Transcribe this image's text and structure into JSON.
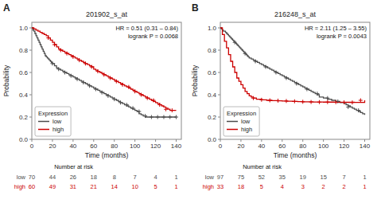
{
  "chart_data": [
    {
      "type": "step",
      "panel_label": "A",
      "title": "201902_s_at",
      "x_label": "Time (months)",
      "y_label": "Probability",
      "annotations": [
        "HR = 0.51 (0.31 – 0.84)",
        "logrank P = 0.0068"
      ],
      "xlim": [
        0,
        145
      ],
      "ylim": [
        0,
        1.05
      ],
      "xticks": [
        0,
        20,
        40,
        60,
        80,
        100,
        120,
        140
      ],
      "yticks": [
        {
          "value": 0,
          "label": "0.0"
        },
        0.2,
        0.4,
        0.6,
        0.8,
        {
          "value": 1,
          "label": "1.0"
        }
      ],
      "grid": false,
      "legend": "lower left",
      "legend_title": "Expression",
      "series": [
        {
          "name": "low",
          "color": "#4d4d4d",
          "x": [
            0,
            1,
            2,
            3,
            4,
            5,
            6,
            7,
            8,
            9,
            10,
            11,
            12,
            13,
            14,
            15,
            16,
            17,
            18,
            19,
            20,
            22,
            24,
            26,
            28,
            30,
            32,
            34,
            36,
            38,
            40,
            42,
            44,
            46,
            48,
            50,
            52,
            54,
            56,
            58,
            60,
            62,
            64,
            66,
            68,
            70,
            72,
            74,
            76,
            78,
            80,
            82,
            84,
            86,
            88,
            90,
            92,
            94,
            96,
            98,
            100,
            102,
            104,
            106,
            108,
            110,
            112,
            114,
            116,
            118,
            120,
            122,
            124,
            126,
            128,
            130,
            132,
            134,
            136,
            138,
            140
          ],
          "values": [
            1.0,
            0.98,
            0.97,
            0.95,
            0.93,
            0.91,
            0.89,
            0.87,
            0.85,
            0.83,
            0.81,
            0.79,
            0.77,
            0.75,
            0.74,
            0.73,
            0.72,
            0.71,
            0.7,
            0.69,
            0.68,
            0.66,
            0.64,
            0.63,
            0.62,
            0.61,
            0.6,
            0.59,
            0.58,
            0.57,
            0.56,
            0.55,
            0.54,
            0.53,
            0.52,
            0.51,
            0.5,
            0.49,
            0.48,
            0.47,
            0.46,
            0.45,
            0.44,
            0.43,
            0.42,
            0.41,
            0.4,
            0.39,
            0.38,
            0.37,
            0.36,
            0.35,
            0.34,
            0.33,
            0.32,
            0.31,
            0.3,
            0.29,
            0.28,
            0.27,
            0.26,
            0.25,
            0.23,
            0.22,
            0.21,
            0.2,
            0.2,
            0.2,
            0.2,
            0.2,
            0.2,
            0.2,
            0.2,
            0.2,
            0.2,
            0.2,
            0.2,
            0.2,
            0.2,
            0.2,
            0.2
          ]
        },
        {
          "name": "high",
          "color": "#cc0000",
          "x": [
            0,
            2,
            4,
            6,
            8,
            10,
            12,
            14,
            16,
            18,
            20,
            22,
            24,
            26,
            28,
            30,
            32,
            34,
            36,
            38,
            40,
            42,
            44,
            46,
            48,
            50,
            52,
            54,
            56,
            58,
            60,
            62,
            64,
            66,
            68,
            70,
            72,
            74,
            76,
            78,
            80,
            82,
            84,
            86,
            88,
            90,
            92,
            94,
            96,
            98,
            100,
            102,
            104,
            106,
            108,
            110,
            112,
            114,
            116,
            118,
            120,
            122,
            124,
            126,
            128,
            130,
            132,
            134,
            136,
            138,
            140
          ],
          "values": [
            1.0,
            0.99,
            0.98,
            0.97,
            0.96,
            0.95,
            0.94,
            0.93,
            0.91,
            0.89,
            0.87,
            0.85,
            0.83,
            0.81,
            0.8,
            0.79,
            0.78,
            0.77,
            0.76,
            0.75,
            0.74,
            0.73,
            0.72,
            0.71,
            0.7,
            0.69,
            0.68,
            0.67,
            0.66,
            0.65,
            0.63,
            0.62,
            0.61,
            0.6,
            0.59,
            0.58,
            0.57,
            0.56,
            0.55,
            0.54,
            0.53,
            0.52,
            0.51,
            0.5,
            0.49,
            0.48,
            0.47,
            0.46,
            0.45,
            0.44,
            0.43,
            0.42,
            0.41,
            0.4,
            0.39,
            0.38,
            0.37,
            0.36,
            0.35,
            0.34,
            0.33,
            0.32,
            0.31,
            0.3,
            0.29,
            0.28,
            0.27,
            0.26,
            0.26,
            0.26,
            0.26
          ]
        },
        {
          "type": "scatter",
          "marker": "plus",
          "color": "#4d4d4d",
          "x": [
            20,
            26,
            32,
            38,
            44,
            50,
            56,
            62,
            68,
            74,
            80,
            86,
            92,
            98,
            104,
            110,
            116,
            122,
            128,
            134,
            140
          ],
          "values": [
            0.68,
            0.63,
            0.6,
            0.57,
            0.54,
            0.51,
            0.48,
            0.45,
            0.42,
            0.39,
            0.36,
            0.33,
            0.31,
            0.28,
            0.25,
            0.21,
            0.2,
            0.2,
            0.2,
            0.2,
            0.2
          ]
        },
        {
          "type": "scatter",
          "marker": "plus",
          "color": "#cc0000",
          "x": [
            16,
            22,
            28,
            34,
            40,
            46,
            52,
            58,
            64,
            70,
            76,
            82,
            88,
            94,
            100,
            106,
            112,
            118,
            124,
            130,
            136
          ],
          "values": [
            0.91,
            0.85,
            0.8,
            0.77,
            0.74,
            0.71,
            0.68,
            0.65,
            0.61,
            0.58,
            0.55,
            0.52,
            0.49,
            0.47,
            0.43,
            0.4,
            0.37,
            0.35,
            0.31,
            0.27,
            0.26
          ]
        }
      ],
      "risk_table": {
        "title": "Number at risk",
        "x": [
          0,
          20,
          40,
          60,
          80,
          100,
          120,
          140
        ],
        "rows": [
          {
            "name": "low",
            "color": "#4d4d4d",
            "values": [
              70,
              44,
              26,
              18,
              8,
              7,
              4,
              1
            ]
          },
          {
            "name": "high",
            "color": "#cc0000",
            "values": [
              60,
              49,
              31,
              21,
              14,
              10,
              5,
              1
            ]
          }
        ]
      }
    },
    {
      "type": "step",
      "panel_label": "B",
      "title": "216248_s_at",
      "x_label": "Time (months)",
      "y_label": "Probability",
      "annotations": [
        "HR = 2.11 (1.25 – 3.55)",
        "logrank P = 0.0043"
      ],
      "xlim": [
        0,
        145
      ],
      "ylim": [
        0,
        1.05
      ],
      "xticks": [
        0,
        20,
        40,
        60,
        80,
        100,
        120,
        140
      ],
      "yticks": [
        {
          "value": 0,
          "label": "0.0"
        },
        0.2,
        0.4,
        0.6,
        0.8,
        {
          "value": 1,
          "label": "1.0"
        }
      ],
      "grid": false,
      "legend": "lower left",
      "legend_title": "Expression",
      "series": [
        {
          "name": "low",
          "color": "#4d4d4d",
          "x": [
            0,
            1,
            2,
            3,
            4,
            5,
            6,
            7,
            8,
            9,
            10,
            11,
            12,
            13,
            14,
            15,
            16,
            17,
            18,
            19,
            20,
            21,
            22,
            23,
            24,
            25,
            26,
            27,
            28,
            30,
            32,
            34,
            36,
            38,
            40,
            42,
            44,
            46,
            48,
            50,
            52,
            54,
            56,
            58,
            60,
            62,
            64,
            66,
            68,
            70,
            72,
            74,
            76,
            78,
            80,
            82,
            84,
            86,
            88,
            90,
            92,
            94,
            96,
            100,
            104,
            108,
            112,
            116,
            120,
            122,
            124,
            126,
            128,
            130,
            132,
            134,
            136,
            138,
            140
          ],
          "values": [
            1.0,
            0.99,
            0.98,
            0.97,
            0.97,
            0.96,
            0.95,
            0.94,
            0.93,
            0.92,
            0.91,
            0.9,
            0.89,
            0.88,
            0.87,
            0.86,
            0.85,
            0.84,
            0.83,
            0.82,
            0.81,
            0.8,
            0.79,
            0.78,
            0.77,
            0.76,
            0.75,
            0.74,
            0.73,
            0.72,
            0.71,
            0.7,
            0.69,
            0.68,
            0.67,
            0.66,
            0.65,
            0.64,
            0.63,
            0.62,
            0.61,
            0.6,
            0.59,
            0.58,
            0.57,
            0.56,
            0.55,
            0.54,
            0.53,
            0.52,
            0.51,
            0.5,
            0.49,
            0.48,
            0.47,
            0.46,
            0.45,
            0.44,
            0.43,
            0.42,
            0.41,
            0.4,
            0.38,
            0.37,
            0.36,
            0.35,
            0.34,
            0.33,
            0.32,
            0.31,
            0.3,
            0.29,
            0.28,
            0.27,
            0.26,
            0.25,
            0.24,
            0.23,
            0.22
          ]
        },
        {
          "name": "high",
          "color": "#cc0000",
          "x": [
            0,
            2,
            4,
            6,
            8,
            10,
            12,
            14,
            16,
            18,
            20,
            22,
            24,
            26,
            28,
            30,
            32,
            35,
            40,
            45,
            50,
            55,
            60,
            65,
            70,
            75,
            80,
            90,
            100,
            110,
            120,
            130,
            140
          ],
          "values": [
            1.0,
            0.94,
            0.88,
            0.82,
            0.76,
            0.7,
            0.65,
            0.6,
            0.55,
            0.52,
            0.49,
            0.46,
            0.43,
            0.41,
            0.39,
            0.38,
            0.37,
            0.36,
            0.355,
            0.35,
            0.348,
            0.346,
            0.344,
            0.342,
            0.34,
            0.338,
            0.336,
            0.335,
            0.334,
            0.333,
            0.332,
            0.331,
            0.35
          ]
        },
        {
          "type": "scatter",
          "marker": "plus",
          "color": "#4d4d4d",
          "x": [
            14,
            24,
            34,
            44,
            54,
            64,
            74,
            84,
            94,
            104,
            114,
            124,
            134
          ],
          "values": [
            0.87,
            0.77,
            0.7,
            0.65,
            0.6,
            0.55,
            0.5,
            0.45,
            0.41,
            0.37,
            0.34,
            0.29,
            0.26
          ]
        },
        {
          "type": "scatter",
          "marker": "plus",
          "color": "#cc0000",
          "x": [
            32,
            40,
            48,
            56,
            64,
            72,
            80,
            88,
            96,
            104,
            112,
            120,
            128,
            136
          ],
          "values": [
            0.37,
            0.355,
            0.35,
            0.347,
            0.344,
            0.341,
            0.337,
            0.335,
            0.334,
            0.334,
            0.333,
            0.332,
            0.331,
            0.35
          ]
        }
      ],
      "risk_table": {
        "title": "Number at risk",
        "x": [
          0,
          20,
          40,
          60,
          80,
          100,
          120,
          140
        ],
        "rows": [
          {
            "name": "low",
            "color": "#4d4d4d",
            "values": [
              97,
              75,
              52,
              35,
              19,
              15,
              7,
              1
            ]
          },
          {
            "name": "high",
            "color": "#cc0000",
            "values": [
              33,
              18,
              5,
              4,
              3,
              2,
              2,
              1
            ]
          }
        ]
      }
    }
  ]
}
